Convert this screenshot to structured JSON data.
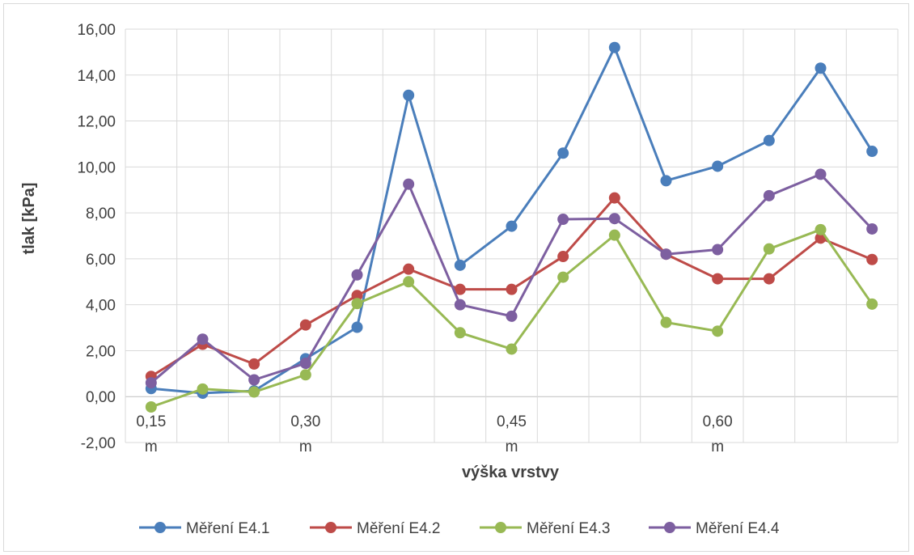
{
  "chart_data": {
    "type": "line",
    "title": "",
    "xlabel": "výška vrstvy",
    "ylabel": "tlak [kPa]",
    "ylim": [
      -2,
      16
    ],
    "ytick_step": 2,
    "ytick_labels": [
      "-2,00",
      "0,00",
      "2,00",
      "4,00",
      "6,00",
      "8,00",
      "10,00",
      "12,00",
      "14,00",
      "16,00"
    ],
    "x_count": 15,
    "x_labels": [
      {
        "index": 0,
        "line1": "0,15",
        "line2": "m"
      },
      {
        "index": 3,
        "line1": "0,30",
        "line2": "m"
      },
      {
        "index": 7,
        "line1": "0,45",
        "line2": "m"
      },
      {
        "index": 11,
        "line1": "0,60",
        "line2": "m"
      }
    ],
    "grid": true,
    "legend_position": "bottom",
    "series": [
      {
        "name": "Měření E4.1",
        "color": "#4a7ebb",
        "values": [
          0.35,
          0.15,
          0.25,
          1.65,
          3.02,
          13.12,
          5.72,
          7.42,
          10.6,
          15.2,
          9.4,
          10.03,
          11.15,
          14.3,
          10.68
        ]
      },
      {
        "name": "Měření E4.2",
        "color": "#be4b48",
        "values": [
          0.88,
          2.28,
          1.42,
          3.12,
          4.4,
          5.55,
          4.67,
          4.67,
          6.1,
          8.65,
          6.2,
          5.13,
          5.13,
          6.9,
          5.97
        ]
      },
      {
        "name": "Měření E4.3",
        "color": "#98b954",
        "values": [
          -0.45,
          0.33,
          0.2,
          0.95,
          4.05,
          5.0,
          2.78,
          2.07,
          5.2,
          7.03,
          3.23,
          2.85,
          6.43,
          7.27,
          4.03
        ]
      },
      {
        "name": "Měření E4.4",
        "color": "#7d5fa0",
        "values": [
          0.6,
          2.5,
          0.73,
          1.45,
          5.3,
          9.25,
          4.0,
          3.5,
          7.72,
          7.75,
          6.2,
          6.4,
          8.75,
          9.68,
          7.3
        ]
      }
    ]
  }
}
